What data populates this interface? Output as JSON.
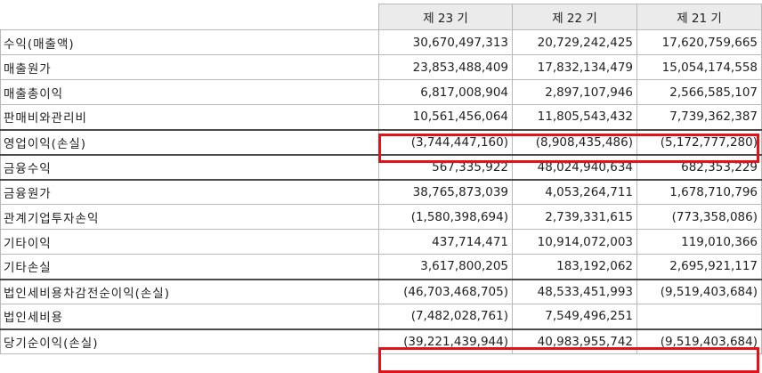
{
  "header": {
    "columns": [
      "제 23 기",
      "제 22 기",
      "제 21 기"
    ]
  },
  "rows": [
    {
      "label": "수익(매출액)",
      "values": [
        "30,670,497,313",
        "20,729,242,425",
        "17,620,759,665"
      ]
    },
    {
      "label": "매출원가",
      "values": [
        "23,853,488,409",
        "17,832,134,479",
        "15,054,174,558"
      ]
    },
    {
      "label": "매출총이익",
      "values": [
        "6,817,008,904",
        "2,897,107,946",
        "2,566,585,107"
      ]
    },
    {
      "label": "판매비와관리비",
      "values": [
        "10,561,456,064",
        "11,805,543,432",
        "7,739,362,387"
      ]
    },
    {
      "label": "영업이익(손실)",
      "values": [
        "(3,744,447,160)",
        "(8,908,435,486)",
        "(5,172,777,280)"
      ]
    },
    {
      "label": "금융수익",
      "values": [
        "567,335,922",
        "48,024,940,634",
        "682,353,229"
      ]
    },
    {
      "label": "금융원가",
      "values": [
        "38,765,873,039",
        "4,053,264,711",
        "1,678,710,796"
      ]
    },
    {
      "label": "관계기업투자손익",
      "values": [
        "(1,580,398,694)",
        "2,739,331,615",
        "(773,358,086)"
      ]
    },
    {
      "label": "기타이익",
      "values": [
        "437,714,471",
        "10,914,072,003",
        "119,010,366"
      ]
    },
    {
      "label": "기타손실",
      "values": [
        "3,617,800,205",
        "183,192,062",
        "2,695,921,117"
      ]
    },
    {
      "label": "법인세비용차감전순이익(손실)",
      "values": [
        "(46,703,468,705)",
        "48,533,451,993",
        "(9,519,403,684)"
      ]
    },
    {
      "label": "법인세비용",
      "values": [
        "(7,482,028,761)",
        "7,549,496,251",
        ""
      ]
    },
    {
      "label": "당기순이익(손실)",
      "values": [
        "(39,221,439,944)",
        "40,983,955,742",
        "(9,519,403,684)"
      ]
    }
  ],
  "highlight_color": "#e4111a"
}
